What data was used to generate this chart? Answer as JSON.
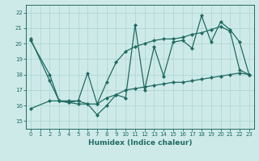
{
  "xlabel": "Humidex (Indice chaleur)",
  "xlim": [
    -0.5,
    23.5
  ],
  "ylim": [
    14.5,
    22.5
  ],
  "yticks": [
    15,
    16,
    17,
    18,
    19,
    20,
    21,
    22
  ],
  "xticks": [
    0,
    1,
    2,
    3,
    4,
    5,
    6,
    7,
    8,
    9,
    10,
    11,
    12,
    13,
    14,
    15,
    16,
    17,
    18,
    19,
    20,
    21,
    22,
    23
  ],
  "bg_color": "#ceeae8",
  "grid_color": "#a8d4d1",
  "line_color": "#1f6b62",
  "line1_x": [
    0,
    2,
    3,
    4,
    5,
    6,
    7,
    8,
    9,
    10,
    11,
    12,
    13,
    14,
    15,
    16,
    17,
    18,
    19,
    20,
    21,
    22,
    23
  ],
  "line1_y": [
    20.3,
    17.6,
    16.3,
    16.2,
    16.1,
    16.1,
    15.4,
    16.0,
    16.7,
    16.5,
    21.2,
    17.0,
    19.8,
    17.9,
    20.1,
    20.2,
    19.7,
    21.8,
    20.1,
    21.4,
    20.9,
    20.1,
    18.0
  ],
  "line2_x": [
    0,
    2,
    3,
    4,
    5,
    6,
    7,
    8,
    9,
    10,
    11,
    12,
    13,
    14,
    15,
    16,
    17,
    18,
    19,
    20,
    21,
    22,
    23
  ],
  "line2_y": [
    20.2,
    18.0,
    16.3,
    16.3,
    16.3,
    18.1,
    16.1,
    17.5,
    18.8,
    19.5,
    19.8,
    20.0,
    20.2,
    20.3,
    20.3,
    20.4,
    20.6,
    20.7,
    20.9,
    21.1,
    20.8,
    18.3,
    18.0
  ],
  "line3_x": [
    0,
    2,
    3,
    4,
    5,
    6,
    7,
    8,
    9,
    10,
    11,
    12,
    13,
    14,
    15,
    16,
    17,
    18,
    19,
    20,
    21,
    22,
    23
  ],
  "line3_y": [
    15.8,
    16.3,
    16.3,
    16.2,
    16.3,
    16.1,
    16.1,
    16.5,
    16.7,
    17.0,
    17.1,
    17.2,
    17.3,
    17.4,
    17.5,
    17.5,
    17.6,
    17.7,
    17.8,
    17.9,
    18.0,
    18.1,
    18.0
  ]
}
